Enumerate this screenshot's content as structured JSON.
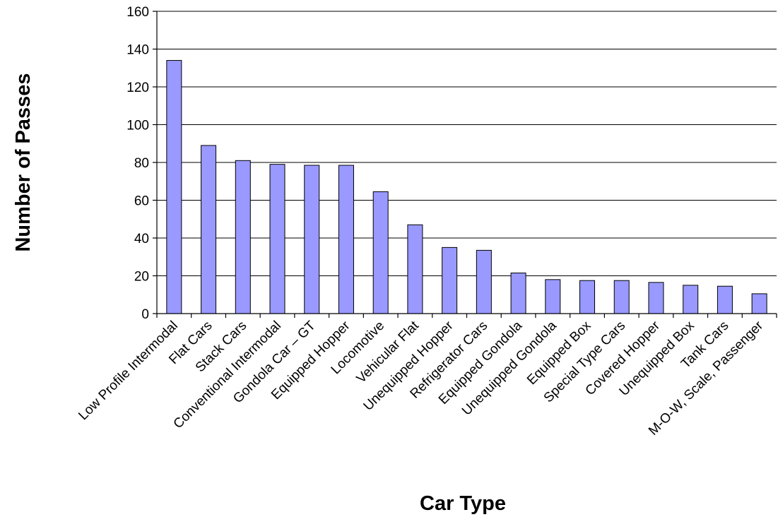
{
  "chart_data": {
    "type": "bar",
    "xlabel": "Car Type",
    "ylabel": "Number of Passes",
    "ylim": [
      0,
      160
    ],
    "yticks": [
      0,
      20,
      40,
      60,
      80,
      100,
      120,
      140,
      160
    ],
    "grid": true,
    "legend": "none",
    "bar_color": "#9999ff",
    "categories": [
      "Low Profile Intermodal",
      "Flat Cars",
      "Stack Cars",
      "Conventional Intermodal",
      "Gondola Car – GT",
      "Equipped Hopper",
      "Locomotive",
      "Vehicular Flat",
      "Unequipped Hopper",
      "Refrigerator Cars",
      "Equipped Gondola",
      "Unequipped Gondola",
      "Equipped Box",
      "Special Type Cars",
      "Covered Hopper",
      "Unequipped Box",
      "Tank Cars",
      "M-O-W, Scale, Passenger"
    ],
    "values": [
      134,
      89,
      81,
      79,
      78.5,
      78.5,
      64.5,
      47,
      35,
      33.5,
      21.5,
      18,
      17.5,
      17.5,
      16.5,
      15,
      14.5,
      10.5
    ]
  }
}
